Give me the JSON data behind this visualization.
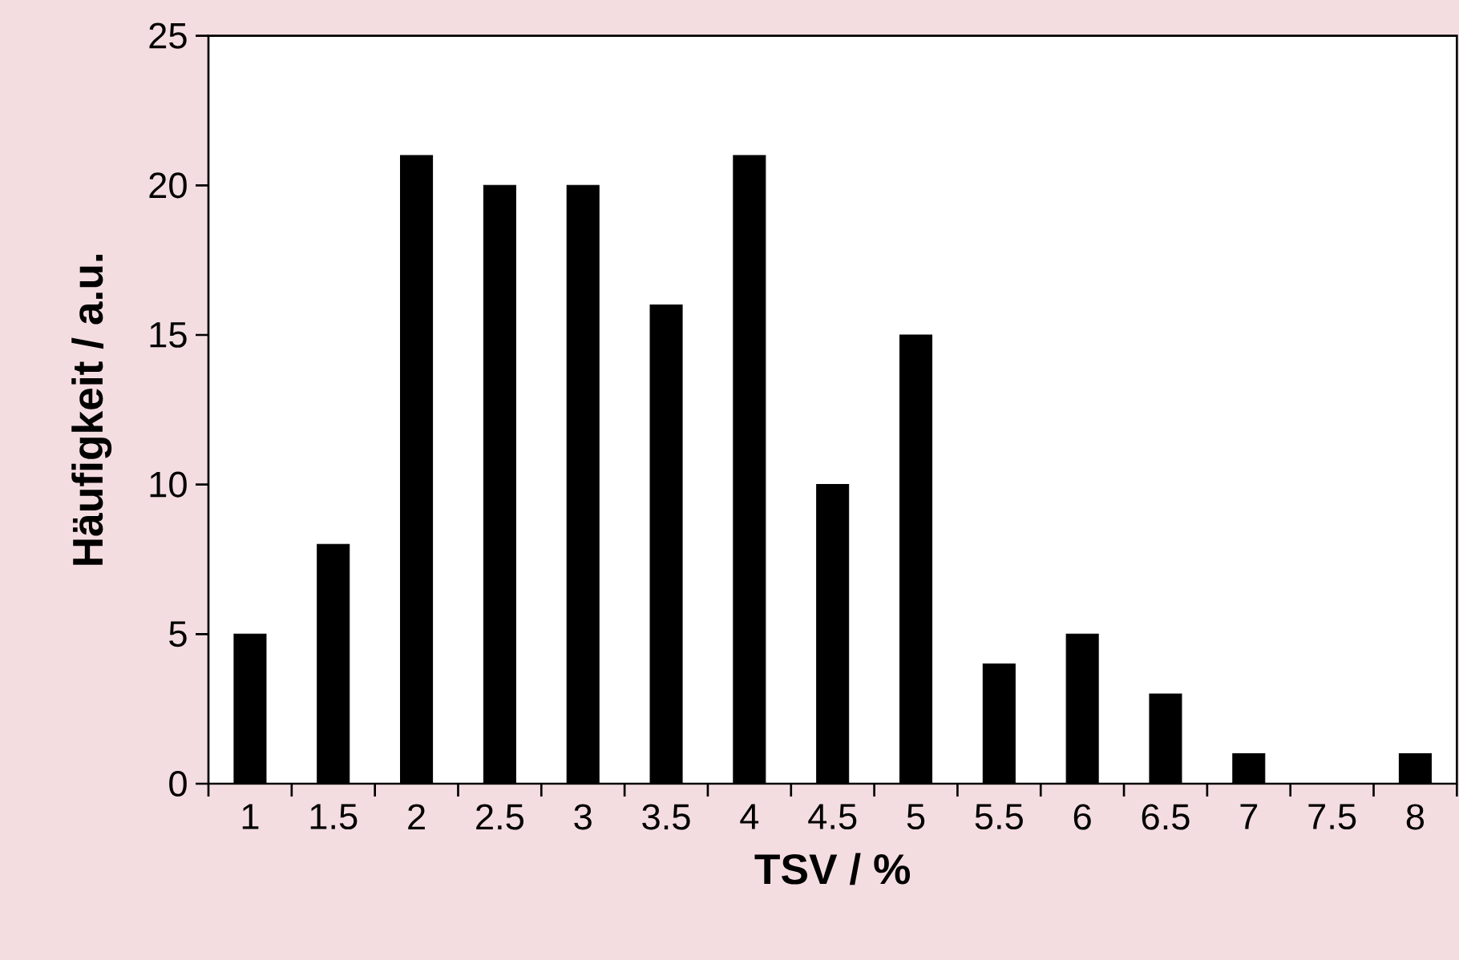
{
  "chart_data": {
    "type": "bar",
    "xlabel": "TSV / %",
    "ylabel": "Häufigkeit / a.u.",
    "categories": [
      "1",
      "1.5",
      "2",
      "2.5",
      "3",
      "3.5",
      "4",
      "4.5",
      "5",
      "5.5",
      "6",
      "6.5",
      "7",
      "7.5",
      "8"
    ],
    "values": [
      5,
      8,
      21,
      20,
      20,
      16,
      21,
      10,
      15,
      4,
      5,
      3,
      1,
      0,
      1
    ],
    "color": "#000000",
    "ylim": [
      0,
      25
    ],
    "yticks": [
      0,
      5,
      10,
      15,
      20,
      25
    ],
    "grid": false
  }
}
